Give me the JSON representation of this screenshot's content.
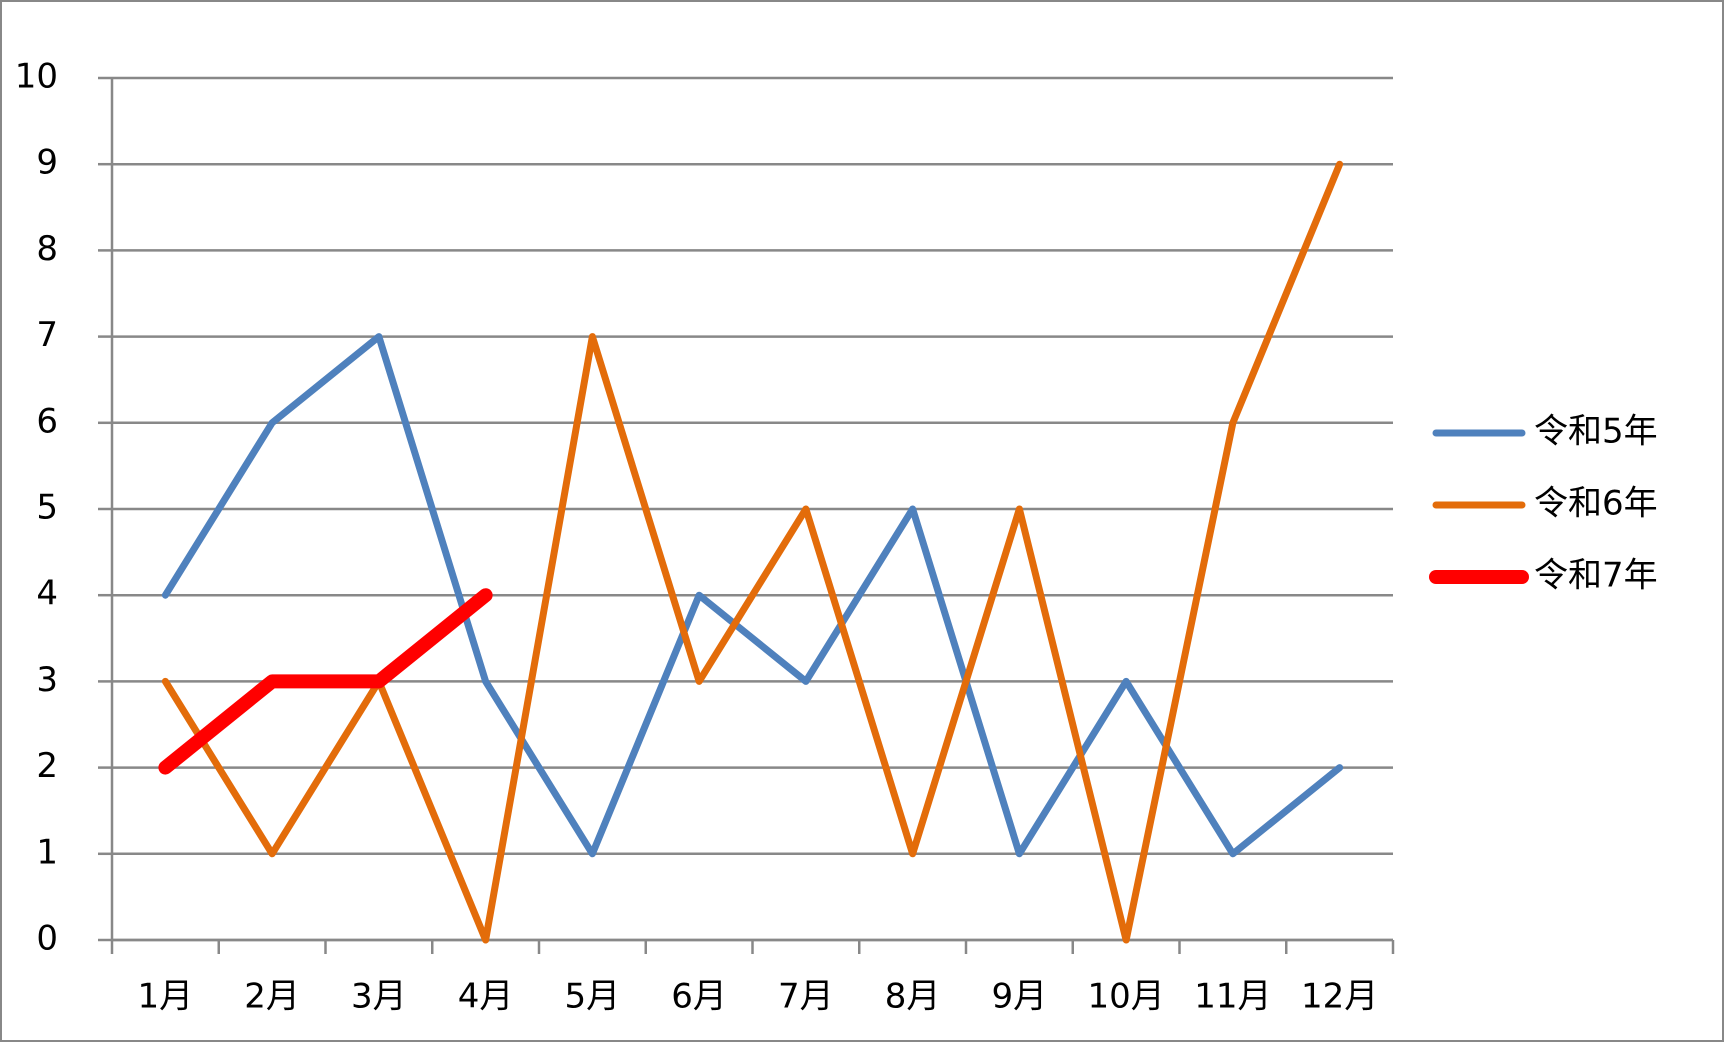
{
  "chart_data": {
    "type": "line",
    "categories": [
      "1月",
      "2月",
      "3月",
      "4月",
      "5月",
      "6月",
      "7月",
      "8月",
      "9月",
      "10月",
      "11月",
      "12月"
    ],
    "series": [
      {
        "name": "令和5年",
        "color": "#4f81bd",
        "values": [
          4,
          6,
          7,
          3,
          1,
          4,
          3,
          5,
          1,
          3,
          1,
          2
        ]
      },
      {
        "name": "令和6年",
        "color": "#e36c0a",
        "values": [
          3,
          1,
          3,
          0,
          7,
          3,
          5,
          1,
          5,
          0,
          6,
          9
        ]
      },
      {
        "name": "令和7年",
        "color": "#ff0000",
        "values": [
          2,
          3,
          3,
          4,
          null,
          null,
          null,
          null,
          null,
          null,
          null,
          null
        ]
      }
    ],
    "ylim": [
      0,
      10
    ],
    "yticks": [
      0,
      1,
      2,
      3,
      4,
      5,
      6,
      7,
      8,
      9,
      10
    ],
    "grid": true,
    "legend": "right"
  }
}
